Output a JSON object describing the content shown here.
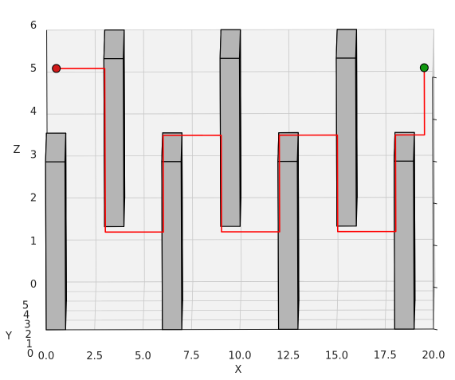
{
  "chart_data": {
    "type": "3d-path",
    "title": "",
    "xlabel": "X",
    "ylabel": "Y",
    "zlabel": "Z",
    "xlim": [
      0,
      20
    ],
    "ylim": [
      0,
      5
    ],
    "zlim": [
      0,
      6
    ],
    "x_ticks": [
      "0.0",
      "2.5",
      "5.0",
      "7.5",
      "10.0",
      "12.5",
      "15.0",
      "17.5",
      "20.0"
    ],
    "y_ticks": [
      "0",
      "1",
      "2",
      "3",
      "4",
      "5"
    ],
    "z_ticks": [
      "0",
      "1",
      "2",
      "3",
      "4",
      "5",
      "6"
    ],
    "grid": true,
    "start": {
      "x": 0.5,
      "y": 4.5,
      "z": 5.2,
      "color": "#d11a1a"
    },
    "goal": {
      "x": 19.5,
      "y": 4.5,
      "z": 5.2,
      "color": "#119911"
    },
    "path_color": "#ff0000",
    "obstacle_color": "#b5b5b5",
    "path": [
      [
        0.5,
        4.5,
        5.2
      ],
      [
        3.0,
        4.5,
        5.2
      ],
      [
        3.0,
        4.5,
        1.3
      ],
      [
        6.0,
        4.5,
        1.3
      ],
      [
        6.0,
        4.5,
        3.6
      ],
      [
        9.0,
        4.5,
        3.6
      ],
      [
        9.0,
        4.5,
        1.3
      ],
      [
        12.0,
        4.5,
        1.3
      ],
      [
        12.0,
        4.5,
        3.6
      ],
      [
        15.0,
        4.5,
        3.6
      ],
      [
        15.0,
        4.5,
        1.3
      ],
      [
        18.0,
        4.5,
        1.3
      ],
      [
        18.0,
        4.5,
        3.6
      ],
      [
        19.5,
        4.5,
        3.6
      ],
      [
        19.5,
        4.5,
        5.2
      ]
    ],
    "obstacles": [
      {
        "x": [
          0,
          1
        ],
        "y": [
          0,
          3
        ],
        "z": [
          0,
          4
        ]
      },
      {
        "x": [
          3,
          4
        ],
        "y": [
          2,
          5
        ],
        "z": [
          2,
          6
        ]
      },
      {
        "x": [
          6,
          7
        ],
        "y": [
          0,
          3
        ],
        "z": [
          0,
          4
        ]
      },
      {
        "x": [
          9,
          10
        ],
        "y": [
          2,
          5
        ],
        "z": [
          2,
          6
        ]
      },
      {
        "x": [
          12,
          13
        ],
        "y": [
          0,
          3
        ],
        "z": [
          0,
          4
        ]
      },
      {
        "x": [
          15,
          16
        ],
        "y": [
          2,
          5
        ],
        "z": [
          2,
          6
        ]
      },
      {
        "x": [
          18,
          19
        ],
        "y": [
          0,
          3
        ],
        "z": [
          0,
          4
        ]
      }
    ]
  }
}
